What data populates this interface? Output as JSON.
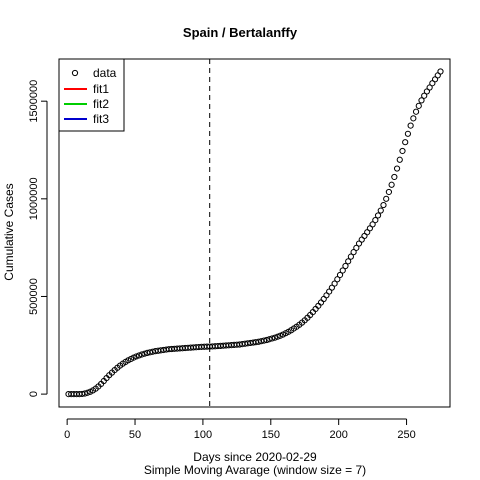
{
  "chart_data": {
    "type": "scatter",
    "title": "Spain / Bertalanffy",
    "xlabel": "Days since 2020-02-29",
    "subtitle": "Simple Moving Avarage (window size = 7)",
    "ylabel": "Cumulative Cases",
    "xlim": [
      -6,
      282
    ],
    "ylim": [
      -66000,
      1716000
    ],
    "x_ticks": [
      0,
      50,
      100,
      150,
      200,
      250
    ],
    "y_ticks": [
      0,
      500000,
      1000000,
      1500000
    ],
    "y_tick_labels": [
      "0",
      "500000",
      "1000000",
      "1500000"
    ],
    "vline": {
      "x": 105,
      "style": "dashed",
      "color": "#000000"
    },
    "legend": {
      "position": "top-left",
      "entries": [
        {
          "label": "data",
          "marker": "circle",
          "color": "#000000"
        },
        {
          "label": "fit1",
          "marker": "line",
          "color": "#ff0000"
        },
        {
          "label": "fit2",
          "marker": "line",
          "color": "#00cd00"
        },
        {
          "label": "fit3",
          "marker": "line",
          "color": "#0000cd"
        }
      ]
    },
    "series": [
      {
        "name": "data",
        "marker": "open-circle",
        "color": "#000000",
        "points": [
          [
            1,
            0
          ],
          [
            3,
            0
          ],
          [
            5,
            0
          ],
          [
            7,
            0
          ],
          [
            9,
            0
          ],
          [
            11,
            1000
          ],
          [
            13,
            3000
          ],
          [
            15,
            7000
          ],
          [
            17,
            12000
          ],
          [
            19,
            19000
          ],
          [
            21,
            28000
          ],
          [
            23,
            39000
          ],
          [
            25,
            52000
          ],
          [
            27,
            67000
          ],
          [
            29,
            82000
          ],
          [
            31,
            97000
          ],
          [
            33,
            110000
          ],
          [
            35,
            123000
          ],
          [
            37,
            135000
          ],
          [
            39,
            146000
          ],
          [
            41,
            156000
          ],
          [
            43,
            165000
          ],
          [
            45,
            173000
          ],
          [
            47,
            180000
          ],
          [
            49,
            187000
          ],
          [
            51,
            193000
          ],
          [
            53,
            198000
          ],
          [
            55,
            203000
          ],
          [
            57,
            207000
          ],
          [
            59,
            211000
          ],
          [
            61,
            214000
          ],
          [
            63,
            217000
          ],
          [
            65,
            220000
          ],
          [
            67,
            222000
          ],
          [
            69,
            224000
          ],
          [
            71,
            226000
          ],
          [
            73,
            228000
          ],
          [
            75,
            230000
          ],
          [
            77,
            231000
          ],
          [
            79,
            232000
          ],
          [
            81,
            233000
          ],
          [
            83,
            234000
          ],
          [
            85,
            235000
          ],
          [
            87,
            236000
          ],
          [
            89,
            237000
          ],
          [
            91,
            238000
          ],
          [
            93,
            239000
          ],
          [
            95,
            240000
          ],
          [
            97,
            241000
          ],
          [
            99,
            242000
          ],
          [
            101,
            242500
          ],
          [
            103,
            243000
          ],
          [
            105,
            243500
          ],
          [
            107,
            244000
          ],
          [
            109,
            245000
          ],
          [
            111,
            246000
          ],
          [
            113,
            247000
          ],
          [
            115,
            248000
          ],
          [
            117,
            249000
          ],
          [
            119,
            250000
          ],
          [
            121,
            251000
          ],
          [
            123,
            252000
          ],
          [
            125,
            253000
          ],
          [
            127,
            254000
          ],
          [
            129,
            256000
          ],
          [
            131,
            258000
          ],
          [
            133,
            260000
          ],
          [
            135,
            262000
          ],
          [
            137,
            264000
          ],
          [
            139,
            266000
          ],
          [
            141,
            268000
          ],
          [
            143,
            271000
          ],
          [
            145,
            274000
          ],
          [
            147,
            277000
          ],
          [
            149,
            281000
          ],
          [
            151,
            285000
          ],
          [
            153,
            289000
          ],
          [
            155,
            294000
          ],
          [
            157,
            299000
          ],
          [
            159,
            305000
          ],
          [
            161,
            312000
          ],
          [
            163,
            319000
          ],
          [
            165,
            327000
          ],
          [
            167,
            336000
          ],
          [
            169,
            345000
          ],
          [
            171,
            355000
          ],
          [
            173,
            366000
          ],
          [
            175,
            378000
          ],
          [
            177,
            391000
          ],
          [
            179,
            405000
          ],
          [
            181,
            420000
          ],
          [
            183,
            436000
          ],
          [
            185,
            452000
          ],
          [
            187,
            469000
          ],
          [
            189,
            487000
          ],
          [
            191,
            506000
          ],
          [
            193,
            525000
          ],
          [
            195,
            545000
          ],
          [
            197,
            566000
          ],
          [
            199,
            588000
          ],
          [
            201,
            610000
          ],
          [
            203,
            633000
          ],
          [
            205,
            656000
          ],
          [
            207,
            680000
          ],
          [
            209,
            704000
          ],
          [
            211,
            727000
          ],
          [
            213,
            749000
          ],
          [
            215,
            771000
          ],
          [
            217,
            791000
          ],
          [
            219,
            810000
          ],
          [
            221,
            829000
          ],
          [
            223,
            849000
          ],
          [
            225,
            869000
          ],
          [
            227,
            891000
          ],
          [
            229,
            915000
          ],
          [
            231,
            940000
          ],
          [
            233,
            968000
          ],
          [
            235,
            1000000
          ],
          [
            237,
            1035000
          ],
          [
            239,
            1072000
          ],
          [
            241,
            1112000
          ],
          [
            243,
            1155000
          ],
          [
            245,
            1200000
          ],
          [
            247,
            1245000
          ],
          [
            249,
            1290000
          ],
          [
            251,
            1333000
          ],
          [
            253,
            1375000
          ],
          [
            255,
            1412000
          ],
          [
            257,
            1446000
          ],
          [
            259,
            1476000
          ],
          [
            261,
            1504000
          ],
          [
            263,
            1528000
          ],
          [
            265,
            1550000
          ],
          [
            267,
            1570000
          ],
          [
            269,
            1592000
          ],
          [
            271,
            1612000
          ],
          [
            273,
            1632000
          ],
          [
            275,
            1652000
          ]
        ]
      }
    ]
  }
}
